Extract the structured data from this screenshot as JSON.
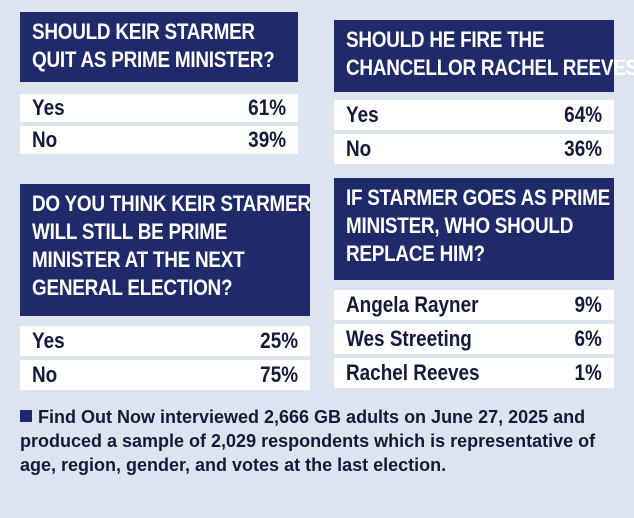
{
  "q1": {
    "title_lines": [
      "SHOULD KEIR STARMER",
      "QUIT AS PRIME MINISTER?"
    ],
    "rows": [
      {
        "label": "Yes",
        "value": "61%"
      },
      {
        "label": "No",
        "value": "39%"
      }
    ]
  },
  "q2": {
    "title_lines": [
      "SHOULD HE FIRE THE",
      "CHANCELLOR RACHEL REEVES?"
    ],
    "rows": [
      {
        "label": "Yes",
        "value": "64%"
      },
      {
        "label": "No",
        "value": "36%"
      }
    ]
  },
  "q3": {
    "title_lines": [
      "DO YOU THINK KEIR STARMER",
      "WILL STILL BE PRIME",
      "MINISTER AT THE NEXT",
      "GENERAL ELECTION?"
    ],
    "rows": [
      {
        "label": "Yes",
        "value": "25%"
      },
      {
        "label": "No",
        "value": "75%"
      }
    ]
  },
  "q4": {
    "title_lines": [
      "IF STARMER GOES AS PRIME",
      "MINISTER, WHO SHOULD",
      "REPLACE HIM?"
    ],
    "rows": [
      {
        "label": "Angela Rayner",
        "value": "9%"
      },
      {
        "label": "Wes Streeting",
        "value": "6%"
      },
      {
        "label": "Rachel Reeves",
        "value": "1%"
      }
    ]
  },
  "footnote": "Find Out Now interviewed 2,666 GB adults on June 27, 2025 and produced a sample of 2,029 respondents which is representative of age, region, gender, and votes at the last election.",
  "colors": {
    "header_bg": "#1f2a6b",
    "page_bg": "#dbe4ef",
    "row_bg": "#ffffff"
  }
}
